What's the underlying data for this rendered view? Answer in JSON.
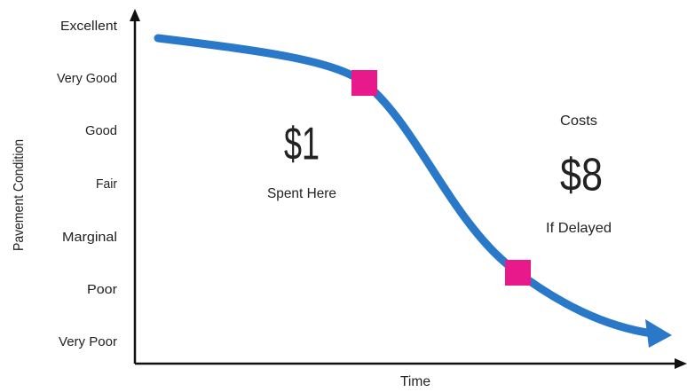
{
  "title": null,
  "y_axis": {
    "label": "Pavement Condition",
    "levels": [
      "Excellent",
      "Very Good",
      "Good",
      "Fair",
      "Marginal",
      "Poor",
      "Very Poor"
    ]
  },
  "x_axis": {
    "label": "Time"
  },
  "annotations": {
    "early": {
      "amount": "$1",
      "caption": "Spent Here"
    },
    "late": {
      "prefix": "Costs",
      "amount": "$8",
      "caption": "If Delayed"
    }
  }
}
